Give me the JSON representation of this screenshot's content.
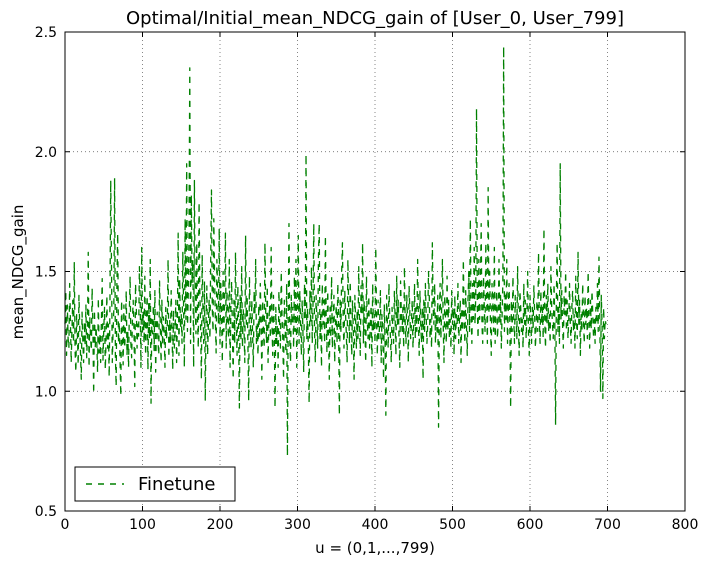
{
  "chart_data": {
    "type": "line",
    "title": "Optimal/Initial_mean_NDCG_gain of [User_0, User_799]",
    "xlabel": "u = (0,1,...,799)",
    "ylabel": "mean_NDCG_gain",
    "xlim": [
      0,
      800
    ],
    "ylim": [
      0.5,
      2.5
    ],
    "xticks": [
      0,
      100,
      200,
      300,
      400,
      500,
      600,
      700,
      800
    ],
    "yticks": [
      0.5,
      1.0,
      1.5,
      2.0,
      2.5
    ],
    "xtick_labels": [
      "0",
      "100",
      "200",
      "300",
      "400",
      "500",
      "600",
      "700",
      "800"
    ],
    "ytick_labels": [
      "0.5",
      "1.0",
      "1.5",
      "2.0",
      "2.5"
    ],
    "grid": true,
    "legend_position": "lower-left",
    "series": [
      {
        "name": "Finetune",
        "color": "#008000",
        "linestyle": "dashed",
        "x_start": 0,
        "x_step": 1,
        "values": [
          1.28,
          1.42,
          1.15,
          1.36,
          1.22,
          1.18,
          1.45,
          1.3,
          1.12,
          1.26,
          1.38,
          1.2,
          1.54,
          1.17,
          1.08,
          1.32,
          1.24,
          1.11,
          1.4,
          1.27,
          1.16,
          1.05,
          1.33,
          1.21,
          1.12,
          1.29,
          1.19,
          1.36,
          1.14,
          1.25,
          1.58,
          1.1,
          1.31,
          1.22,
          1.17,
          1.43,
          1.26,
          0.99,
          1.34,
          1.18,
          1.27,
          1.21,
          1.08,
          1.39,
          1.16,
          1.24,
          1.12,
          1.3,
          1.47,
          1.13,
          1.26,
          1.35,
          1.09,
          1.22,
          1.4,
          1.18,
          1.28,
          1.06,
          1.37,
          1.88,
          1.52,
          1.12,
          1.25,
          1.34,
          1.89,
          1.15,
          1.02,
          1.46,
          1.66,
          1.2,
          1.29,
          1.13,
          0.98,
          1.38,
          1.24,
          1.11,
          1.36,
          1.18,
          1.27,
          1.42,
          1.15,
          1.25,
          1.1,
          1.33,
          1.48,
          1.2,
          1.14,
          1.3,
          1.38,
          1.26,
          1.02,
          1.45,
          1.35,
          1.18,
          1.28,
          1.23,
          1.52,
          1.38,
          1.1,
          1.6,
          1.25,
          1.33,
          1.2,
          1.48,
          1.15,
          1.29,
          1.4,
          1.09,
          1.37,
          1.22,
          1.55,
          0.95,
          1.3,
          1.24,
          1.36,
          1.17,
          1.42,
          1.08,
          1.28,
          1.33,
          1.21,
          1.15,
          1.46,
          1.26,
          1.12,
          1.38,
          1.19,
          1.31,
          1.24,
          1.1,
          1.35,
          1.22,
          1.28,
          1.55,
          1.14,
          1.3,
          1.2,
          1.42,
          1.27,
          1.09,
          1.34,
          1.18,
          1.25,
          1.38,
          1.12,
          1.29,
          1.66,
          1.15,
          1.47,
          1.26,
          1.32,
          1.2,
          1.58,
          1.36,
          1.1,
          1.72,
          1.3,
          1.95,
          1.25,
          1.4,
          1.65,
          2.35,
          1.2,
          1.82,
          1.45,
          1.55,
          1.1,
          1.88,
          1.35,
          1.24,
          1.62,
          1.3,
          1.18,
          1.79,
          1.42,
          1.26,
          1.05,
          1.57,
          1.33,
          1.2,
          1.46,
          0.96,
          1.3,
          1.44,
          1.15,
          1.28,
          1.38,
          1.22,
          1.55,
          1.84,
          1.35,
          1.25,
          1.72,
          1.48,
          1.3,
          1.16,
          1.55,
          1.4,
          1.28,
          1.68,
          1.2,
          1.45,
          1.32,
          1.12,
          1.5,
          1.25,
          1.38,
          1.66,
          1.18,
          1.42,
          1.3,
          1.22,
          1.55,
          1.1,
          1.35,
          1.46,
          1.25,
          1.05,
          1.38,
          1.2,
          1.58,
          1.3,
          1.15,
          1.44,
          1.27,
          0.93,
          1.4,
          1.22,
          1.52,
          1.18,
          1.34,
          1.26,
          1.12,
          1.65,
          1.28,
          1.4,
          1.2,
          0.96,
          1.48,
          1.3,
          1.18,
          1.38,
          1.25,
          1.1,
          1.42,
          1.32,
          1.55,
          1.2,
          1.28,
          1.15,
          1.36,
          1.22,
          1.45,
          1.3,
          1.05,
          1.38,
          1.26,
          1.18,
          1.62,
          1.32,
          1.2,
          1.44,
          1.12,
          1.28,
          1.36,
          1.22,
          1.6,
          1.3,
          1.15,
          1.4,
          1.25,
          0.93,
          1.35,
          1.2,
          1.28,
          1.1,
          1.42,
          1.26,
          1.18,
          1.5,
          1.32,
          1.22,
          1.05,
          1.38,
          1.28,
          1.16,
          1.45,
          0.73,
          1.3,
          1.7,
          1.22,
          1.12,
          1.4,
          1.28,
          1.35,
          1.18,
          1.48,
          1.25,
          1.55,
          1.1,
          1.32,
          1.65,
          1.2,
          1.42,
          1.28,
          1.15,
          1.38,
          1.25,
          1.08,
          1.45,
          1.3,
          1.99,
          1.22,
          1.35,
          1.18,
          0.95,
          1.42,
          1.28,
          1.52,
          1.2,
          1.36,
          1.7,
          1.25,
          1.12,
          1.4,
          1.3,
          1.18,
          1.55,
          1.7,
          1.22,
          1.32,
          1.1,
          1.45,
          1.28,
          1.38,
          1.2,
          1.65,
          1.3,
          1.16,
          1.42,
          1.25,
          1.05,
          1.35,
          1.22,
          1.48,
          1.18,
          1.3,
          1.4,
          1.12,
          1.28,
          1.36,
          1.2,
          1.45,
          1.3,
          0.9,
          1.38,
          1.25,
          1.5,
          1.62,
          1.28,
          1.18,
          1.42,
          1.32,
          1.24,
          1.12,
          1.55,
          1.35,
          1.2,
          1.46,
          1.28,
          1.15,
          1.38,
          1.25,
          1.05,
          1.4,
          1.3,
          1.18,
          1.34,
          1.22,
          1.52,
          1.28,
          1.15,
          1.44,
          1.32,
          1.62,
          1.2,
          1.38,
          1.26,
          1.12,
          1.48,
          1.3,
          1.22,
          1.4,
          1.18,
          1.28,
          1.36,
          1.1,
          1.45,
          1.25,
          1.32,
          1.2,
          1.6,
          1.3,
          1.15,
          1.38,
          1.22,
          1.28,
          1.42,
          1.12,
          1.32,
          1.25,
          1.05,
          1.36,
          1.2,
          0.9,
          1.4,
          1.28,
          1.18,
          1.45,
          1.3,
          1.22,
          1.12,
          1.35,
          1.25,
          1.2,
          1.42,
          1.3,
          1.15,
          1.48,
          1.28,
          1.38,
          1.22,
          1.1,
          1.46,
          1.32,
          1.25,
          1.35,
          1.18,
          1.52,
          1.28,
          1.2,
          1.4,
          1.3,
          1.12,
          1.44,
          1.32,
          1.22,
          1.28,
          1.38,
          1.18,
          1.3,
          1.45,
          1.22,
          1.35,
          1.25,
          1.55,
          1.3,
          1.15,
          1.42,
          1.28,
          1.2,
          1.35,
          1.05,
          1.38,
          1.25,
          1.45,
          1.32,
          1.2,
          1.28,
          1.5,
          1.4,
          1.22,
          1.3,
          1.18,
          1.62,
          1.35,
          1.28,
          1.45,
          1.2,
          1.32,
          1.25,
          1.4,
          0.85,
          1.3,
          1.45,
          1.22,
          1.35,
          1.55,
          1.28,
          1.12,
          1.4,
          1.3,
          1.2,
          1.48,
          1.25,
          1.38,
          1.22,
          1.3,
          1.18,
          1.42,
          1.28,
          1.35,
          1.15,
          1.4,
          1.22,
          1.32,
          1.28,
          1.45,
          1.2,
          1.3,
          1.38,
          1.12,
          1.35,
          1.25,
          1.55,
          1.3,
          1.2,
          1.42,
          1.28,
          1.15,
          1.38,
          1.5,
          1.25,
          1.72,
          1.32,
          1.2,
          1.45,
          1.3,
          1.6,
          1.28,
          1.4,
          2.18,
          1.35,
          1.22,
          1.55,
          1.3,
          1.42,
          1.7,
          1.28,
          1.2,
          1.48,
          1.35,
          1.25,
          1.62,
          1.4,
          1.2,
          1.85,
          1.32,
          1.5,
          1.28,
          1.15,
          1.45,
          1.38,
          1.25,
          1.6,
          1.2,
          1.35,
          1.42,
          1.22,
          1.3,
          1.55,
          1.28,
          1.4,
          1.18,
          1.32,
          1.46,
          2.44,
          1.25,
          1.4,
          1.3,
          1.55,
          1.2,
          1.35,
          1.45,
          1.28,
          0.93,
          1.38,
          1.25,
          1.48,
          1.3,
          1.2,
          1.4,
          1.32,
          1.22,
          1.52,
          1.28,
          1.15,
          1.42,
          1.35,
          1.25,
          1.3,
          1.18,
          1.45,
          1.28,
          1.38,
          1.22,
          1.32,
          1.5,
          1.25,
          1.15,
          1.4,
          1.3,
          1.2,
          1.35,
          1.26,
          1.44,
          1.32,
          1.18,
          1.28,
          1.38,
          1.25,
          1.58,
          1.3,
          1.2,
          1.42,
          1.28,
          1.35,
          1.22,
          1.68,
          1.3,
          1.18,
          1.4,
          1.28,
          1.45,
          1.25,
          1.32,
          1.2,
          1.52,
          1.35,
          1.28,
          1.22,
          1.45,
          1.3,
          0.86,
          1.38,
          1.62,
          1.25,
          1.35,
          1.2,
          1.95,
          1.3,
          1.42,
          1.28,
          1.18,
          1.4,
          1.32,
          1.5,
          1.25,
          1.38,
          1.22,
          1.3,
          1.45,
          1.28,
          1.2,
          1.35,
          1.42,
          1.25,
          1.32,
          1.18,
          1.48,
          1.3,
          1.22,
          1.58,
          1.28,
          1.38,
          1.15,
          1.32,
          1.25,
          1.45,
          1.3,
          1.2,
          1.4,
          1.28,
          1.35,
          1.22,
          1.5,
          1.3,
          1.18,
          1.38,
          1.26,
          1.42,
          1.32,
          1.22,
          1.3,
          1.2,
          1.35,
          1.28,
          1.45,
          1.25,
          1.56,
          1.32,
          1.0,
          1.4,
          1.28,
          0.97,
          1.35,
          1.22,
          1.3,
          1.28
        ]
      }
    ]
  }
}
